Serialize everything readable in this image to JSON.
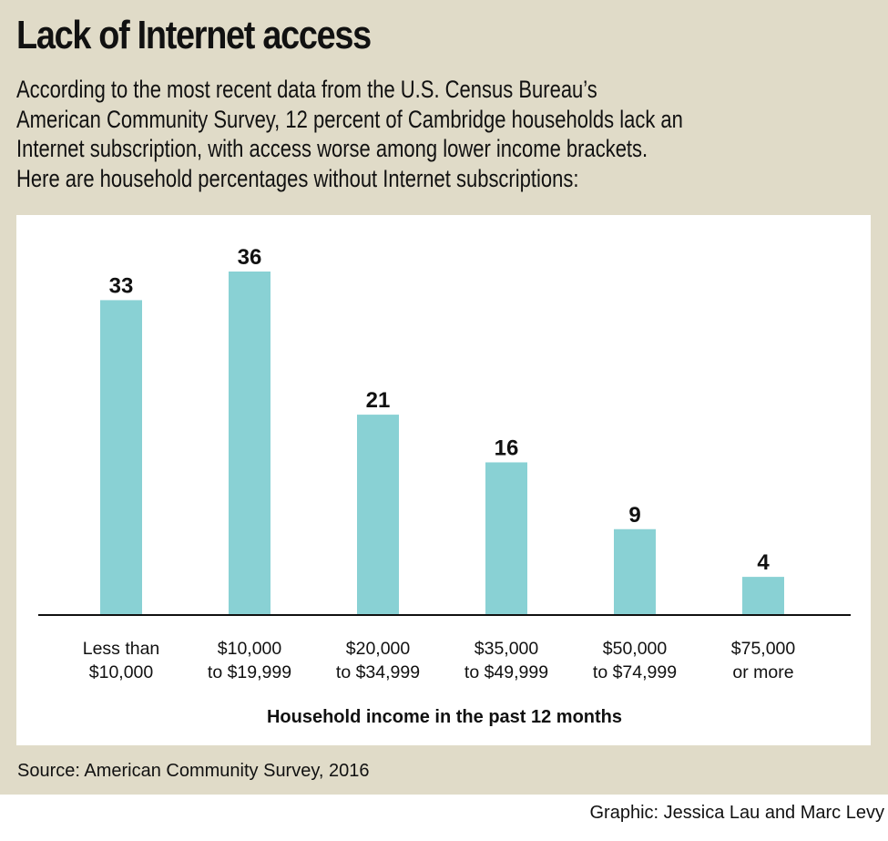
{
  "header": {
    "title": "Lack of Internet access",
    "intro_lines": [
      "According to the most recent data from the U.S. Census Bureau’s",
      "American Community Survey, 12 percent of Cambridge households lack an",
      "Internet subscription, with access worse among lower income brackets.",
      "Here are household percentages without Internet subscriptions:"
    ]
  },
  "footer": {
    "source": "Source: American Community Survey, 2016",
    "credit": "Graphic: Jessica Lau and Marc Levy"
  },
  "colors": {
    "background": "#e0dbc8",
    "panel": "#ffffff",
    "bar": "#89d1d4",
    "text": "#111111"
  },
  "chart_data": {
    "type": "bar",
    "title": "Lack of Internet access",
    "xlabel": "Household income in the past 12 months",
    "ylabel": "",
    "categories": [
      [
        "Less than",
        "$10,000"
      ],
      [
        "$10,000",
        "to $19,999"
      ],
      [
        "$20,000",
        "to $34,999"
      ],
      [
        "$35,000",
        "to $49,999"
      ],
      [
        "$50,000",
        "to $74,999"
      ],
      [
        "$75,000",
        "or more"
      ]
    ],
    "values": [
      33,
      36,
      21,
      16,
      9,
      4
    ],
    "data_labels": [
      "33",
      "36",
      "21",
      "16",
      "9",
      "4"
    ],
    "ylim": [
      0,
      36
    ],
    "grid": false,
    "legend": "none",
    "units": "percent of households"
  }
}
